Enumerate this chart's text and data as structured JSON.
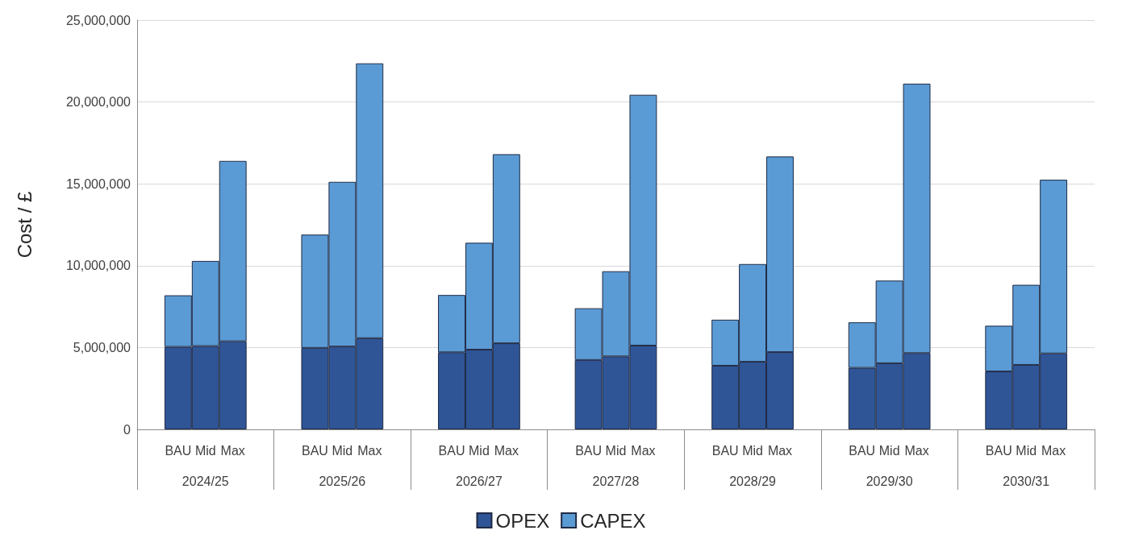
{
  "chart_data": {
    "type": "bar",
    "stacked": true,
    "ylabel": "Cost / £",
    "categories": [
      null,
      "BAU",
      "Mid",
      "Max",
      null,
      null,
      "BAU",
      "Mid",
      "Max",
      null,
      null,
      "BAU",
      "Mid",
      "Max",
      null,
      null,
      "BAU",
      "Mid",
      "Max",
      null,
      null,
      "BAU",
      "Mid",
      "Max",
      null,
      null,
      "BAU",
      "Mid",
      "Max",
      null,
      null,
      "BAU",
      "Mid",
      "Max",
      null
    ],
    "annotations": [
      "2024/25",
      "2025/26",
      "2026/27",
      "2027/28",
      "2028/29",
      "2029/30",
      "2030/31"
    ],
    "series": [
      {
        "name": "OPEX",
        "color": "#2f5597",
        "values": [
          null,
          5040000,
          5090000,
          5380000,
          null,
          null,
          4980000,
          5060000,
          5570000,
          null,
          null,
          4710000,
          4870000,
          5260000,
          null,
          null,
          4240000,
          4460000,
          5120000,
          null,
          null,
          3890000,
          4130000,
          4720000,
          null,
          null,
          3760000,
          4040000,
          4660000,
          null,
          null,
          3540000,
          3940000,
          4640000,
          null
        ]
      },
      {
        "name": "CAPEX",
        "color": "#5b9bd5",
        "values": [
          null,
          3150000,
          5200000,
          11020000,
          null,
          null,
          6920000,
          10060000,
          16790000,
          null,
          null,
          3500000,
          6530000,
          11550000,
          null,
          null,
          3160000,
          5200000,
          15320000,
          null,
          null,
          2810000,
          5970000,
          11950000,
          null,
          null,
          2780000,
          5050000,
          16460000,
          null,
          null,
          2790000,
          4890000,
          10610000,
          null
        ]
      }
    ],
    "ylim": [
      0,
      25000000
    ],
    "yticks": [
      0,
      {
        "value": 5000000,
        "label": "5,000,000"
      },
      {
        "value": 10000000,
        "label": "10,000,000"
      },
      {
        "value": 15000000,
        "label": "15,000,000"
      },
      {
        "value": 20000000,
        "label": "20,000,000"
      },
      {
        "value": 25000000,
        "label": "25,000,000"
      }
    ],
    "grid": "y",
    "legend": "bottom"
  }
}
